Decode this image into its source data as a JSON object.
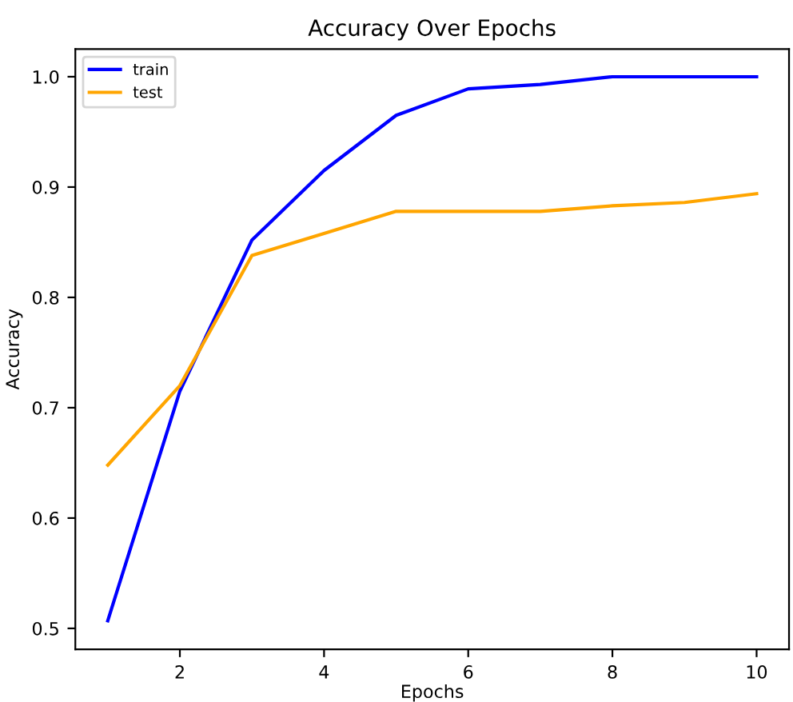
{
  "chart_data": {
    "type": "line",
    "title": "Accuracy Over Epochs",
    "xlabel": "Epochs",
    "ylabel": "Accuracy",
    "x": [
      1,
      2,
      3,
      4,
      5,
      6,
      7,
      8,
      9,
      10
    ],
    "series": [
      {
        "name": "train",
        "color": "#0000ff",
        "values": [
          0.507,
          0.715,
          0.852,
          0.915,
          0.965,
          0.989,
          0.993,
          1.0,
          1.0,
          1.0
        ]
      },
      {
        "name": "test",
        "color": "#ffa500",
        "values": [
          0.648,
          0.72,
          0.838,
          0.858,
          0.878,
          0.878,
          0.878,
          0.883,
          0.886,
          0.894
        ]
      }
    ],
    "xlim": [
      0.55,
      10.45
    ],
    "ylim": [
      0.481,
      1.025
    ],
    "xticks": [
      2,
      4,
      6,
      8,
      10
    ],
    "yticks": [
      0.5,
      0.6,
      0.7,
      0.8,
      0.9,
      {
        "value": 1.0,
        "label": "1.0"
      }
    ],
    "legend": "top left",
    "grid": false,
    "line_style": "solid",
    "marker": "none"
  }
}
